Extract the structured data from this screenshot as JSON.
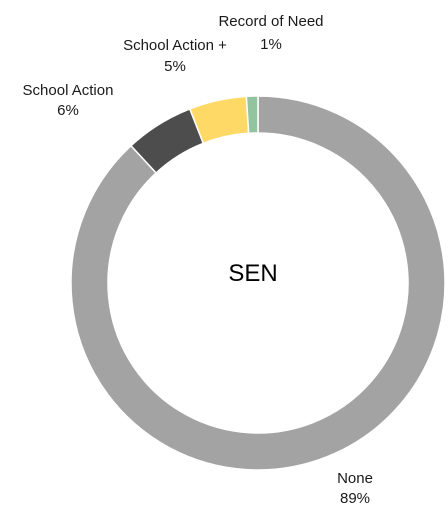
{
  "chart_data": {
    "type": "pie",
    "title": "",
    "center_label": "SEN",
    "slices": [
      {
        "label": "None",
        "value": 89,
        "display": "89%",
        "color": "#a3a3a3"
      },
      {
        "label": "School Action",
        "value": 6,
        "display": "6%",
        "color": "#4d4d4d"
      },
      {
        "label": "School Action +",
        "value": 5,
        "display": "5%",
        "color": "#ffd966"
      },
      {
        "label": "Record of Need",
        "value": 1,
        "display": "1%",
        "color": "#93c4a0"
      }
    ]
  }
}
